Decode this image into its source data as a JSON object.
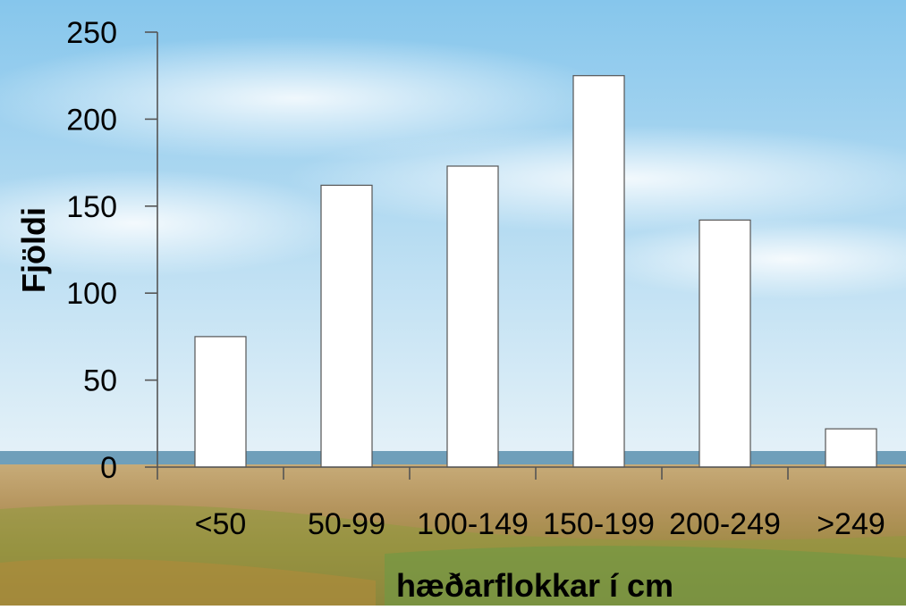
{
  "chart_data": {
    "type": "bar",
    "title": "",
    "xlabel": "hæðarflokkar í cm",
    "ylabel": "Fjöldi",
    "categories": [
      "<50",
      "50-99",
      "100-149",
      "150-199",
      "200-249",
      ">249"
    ],
    "values": [
      75,
      162,
      173,
      225,
      142,
      22
    ],
    "ylim": [
      0,
      250
    ],
    "yticks": [
      "0",
      "50",
      "100",
      "150",
      "200",
      "250"
    ],
    "grid": false,
    "legend": "none",
    "colors": {
      "bar_fill": "#ffffff",
      "bar_stroke": "#555555",
      "axis": "#555555",
      "text": "#000000"
    },
    "background": "landscape-photo"
  }
}
